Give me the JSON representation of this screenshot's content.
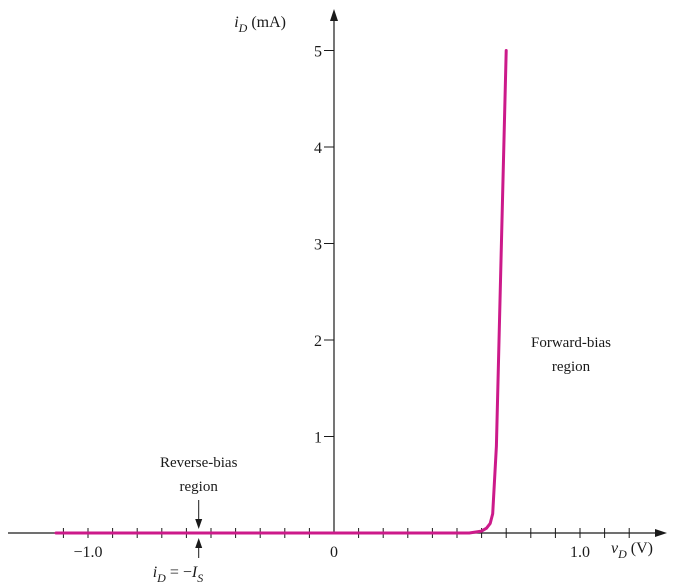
{
  "chart_data": {
    "type": "line",
    "title": "",
    "xlabel": {
      "main": "v",
      "sub": "D",
      "unit": "(V)"
    },
    "ylabel": {
      "main": "i",
      "sub": "D",
      "unit": "(mA)"
    },
    "xlim": [
      -1.2,
      1.2
    ],
    "ylim": [
      0,
      5.4
    ],
    "x_minor_step": 0.1,
    "x_tick_labels": [
      {
        "value": -1.0,
        "label": "−1.0"
      },
      {
        "value": 0,
        "label": "0"
      },
      {
        "value": 1.0,
        "label": "1.0"
      }
    ],
    "y_tick_labels": [
      {
        "value": 1,
        "label": "1"
      },
      {
        "value": 2,
        "label": "2"
      },
      {
        "value": 3,
        "label": "3"
      },
      {
        "value": 4,
        "label": "4"
      },
      {
        "value": 5,
        "label": "5"
      }
    ],
    "grid": false,
    "line_color": "#cc1a8a",
    "series": [
      {
        "x": [
          -1.13,
          -0.5,
          0,
          0.3,
          0.55,
          0.6,
          0.62,
          0.635,
          0.645,
          0.66,
          0.7
        ],
        "y": [
          0,
          0,
          0,
          0,
          0,
          0.02,
          0.05,
          0.1,
          0.2,
          0.9,
          5.0
        ]
      }
    ],
    "annotations": {
      "forward": {
        "lines": [
          "Forward-bias",
          "region"
        ]
      },
      "reverse": {
        "lines": [
          "Reverse-bias",
          "region"
        ],
        "x": -0.55
      },
      "is_label": {
        "main_i": "i",
        "sub_D": "D",
        "eq": " = −",
        "main_I": "I",
        "sub_S": "S"
      }
    }
  }
}
